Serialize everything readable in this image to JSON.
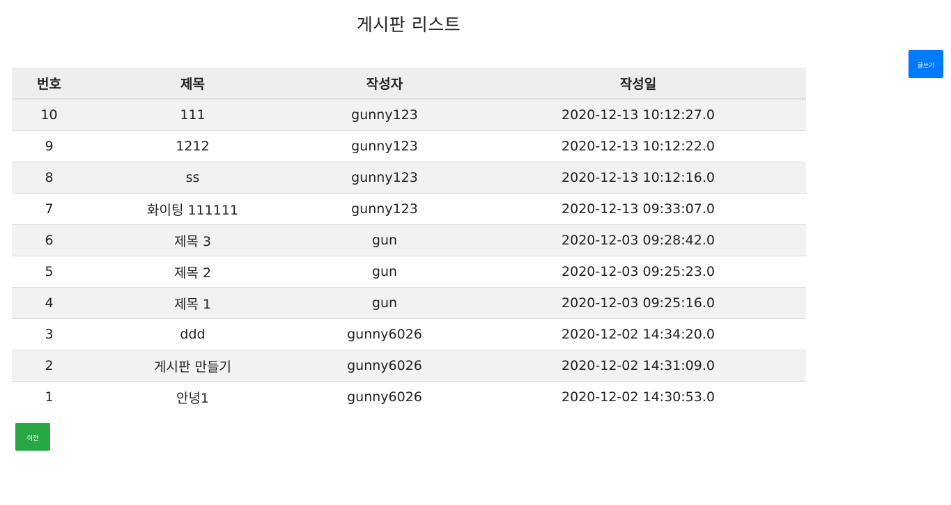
{
  "page": {
    "title": "게시판 리스트"
  },
  "buttons": {
    "write_label": "글쓰기",
    "prev_label": "이전",
    "write_color": "#007bff",
    "prev_color": "#28a745"
  },
  "table": {
    "headers": [
      "번호",
      "제목",
      "작성자",
      "작성일"
    ],
    "rows": [
      {
        "num": "10",
        "title": "111",
        "author": "gunny123",
        "date": "2020-12-13 10:12:27.0"
      },
      {
        "num": "9",
        "title": "1212",
        "author": "gunny123",
        "date": "2020-12-13 10:12:22.0"
      },
      {
        "num": "8",
        "title": "ss",
        "author": "gunny123",
        "date": "2020-12-13 10:12:16.0"
      },
      {
        "num": "7",
        "title": "화이팅 111111",
        "author": "gunny123",
        "date": "2020-12-13 09:33:07.0"
      },
      {
        "num": "6",
        "title": "제목 3",
        "author": "gun",
        "date": "2020-12-03 09:28:42.0"
      },
      {
        "num": "5",
        "title": "제목 2",
        "author": "gun",
        "date": "2020-12-03 09:25:23.0"
      },
      {
        "num": "4",
        "title": "제목 1",
        "author": "gun",
        "date": "2020-12-03 09:25:16.0"
      },
      {
        "num": "3",
        "title": "ddd",
        "author": "gunny6026",
        "date": "2020-12-02 14:34:20.0"
      },
      {
        "num": "2",
        "title": "게시판 만들기",
        "author": "gunny6026",
        "date": "2020-12-02 14:31:09.0"
      },
      {
        "num": "1",
        "title": "안녕1",
        "author": "gunny6026",
        "date": "2020-12-02 14:30:53.0"
      }
    ]
  }
}
